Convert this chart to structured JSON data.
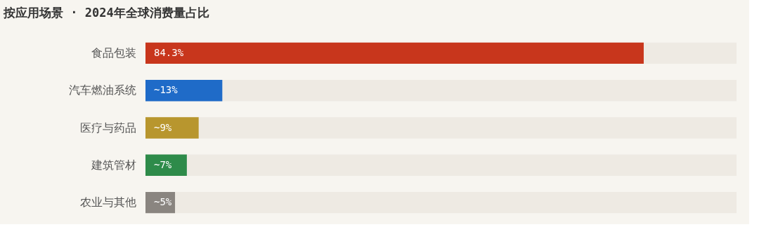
{
  "chart_data": {
    "type": "bar",
    "orientation": "horizontal",
    "title": "按应用场景 · 2024年全球消费量占比",
    "categories": [
      "食品包装",
      "汽车燃油系统",
      "医疗与药品",
      "建筑管材",
      "农业与其他"
    ],
    "values": [
      84.3,
      13,
      9,
      7,
      5
    ],
    "colors": [
      "#c8361c",
      "#1f6bc8",
      "#b8962e",
      "#2e8b4a",
      "#8a8580"
    ],
    "value_labels": [
      "84.3%",
      "~13%",
      "~9%",
      "~7%",
      "~5%"
    ],
    "xlim": [
      0,
      100
    ],
    "bands": [
      {
        "axis": "x",
        "from": 0,
        "to": 100,
        "color": "#eeeae3"
      }
    ],
    "tick_labels": "y",
    "grid": false
  }
}
